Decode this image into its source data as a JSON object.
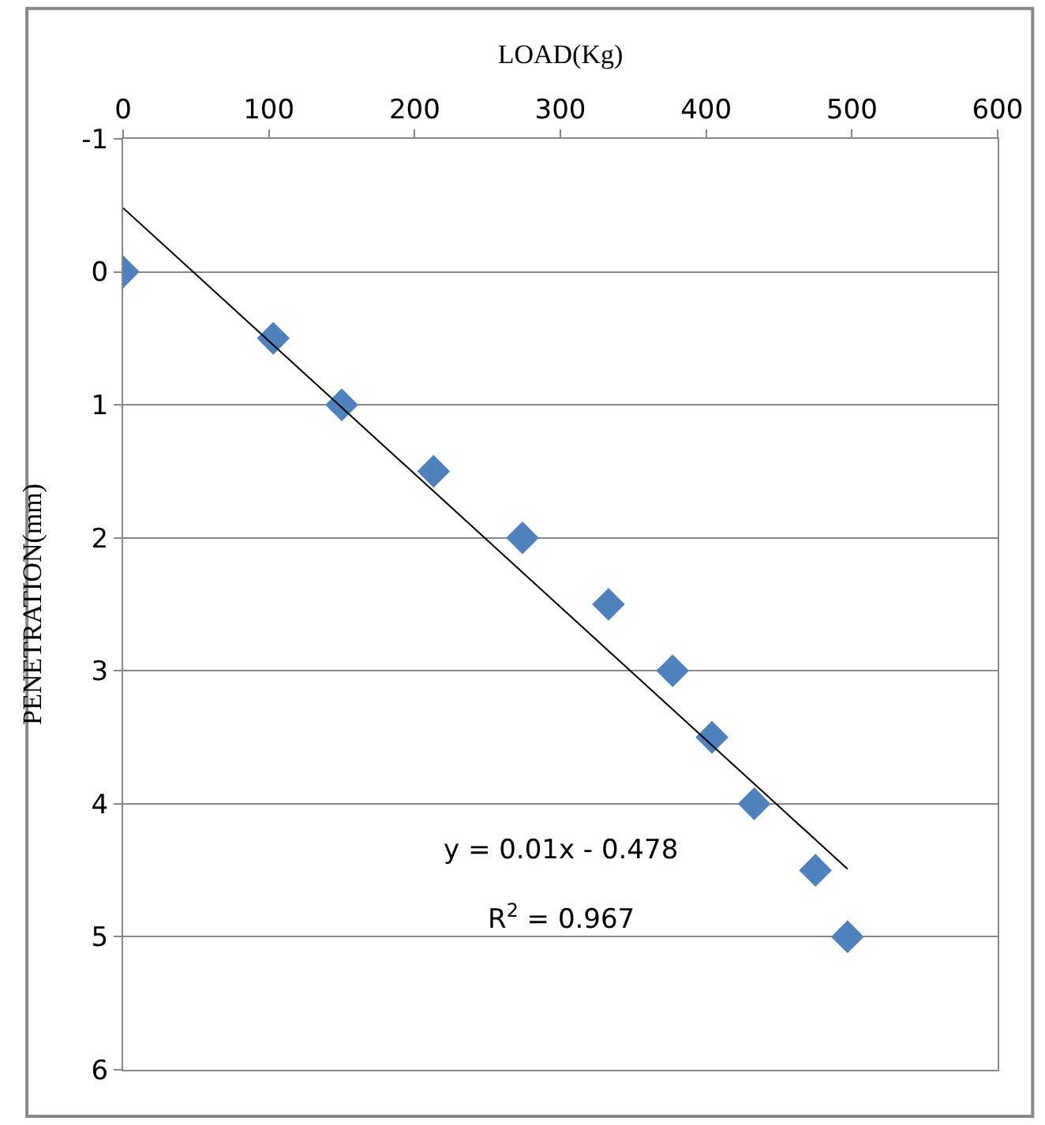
{
  "chart_data": {
    "type": "scatter",
    "xlabel": "LOAD(Kg)",
    "ylabel": "PENETRATION(mm)",
    "xlim": [
      0,
      600
    ],
    "xticks": [
      0,
      100,
      200,
      300,
      400,
      500,
      600
    ],
    "ylim": [
      6,
      -1
    ],
    "yticks": [
      -1,
      0,
      1,
      2,
      3,
      4,
      5,
      6
    ],
    "grid": "y",
    "marker": "diamond",
    "series": [
      {
        "color": "#4f81bd",
        "x": [
          0,
          103,
          150,
          213,
          274,
          333,
          377,
          404,
          433,
          475,
          497
        ],
        "values": [
          0,
          0.5,
          1.0,
          1.5,
          2.0,
          2.5,
          3.0,
          3.5,
          4.0,
          4.5,
          5.0
        ]
      },
      {
        "type": "line",
        "marker": "none",
        "color": "#000000",
        "x": [
          0,
          497
        ],
        "values": [
          -0.48,
          4.49
        ]
      }
    ],
    "annotations": [
      "y = 0.01x - 0.478",
      "R$^{2}$ = 0.967"
    ]
  }
}
